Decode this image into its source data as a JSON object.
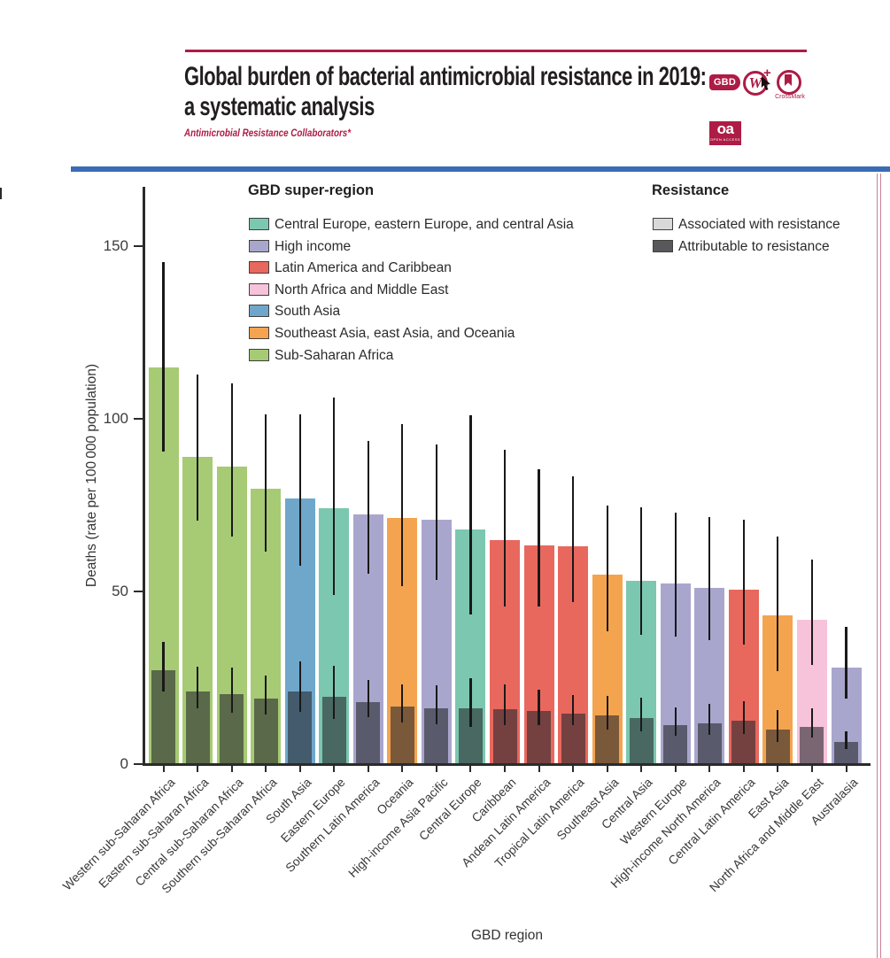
{
  "header": {
    "title_line1": "Global burden of bacterial antimicrobial resistance in 2019:",
    "title_line2": "a systematic analysis",
    "authors": "Antimicrobial Resistance Collaborators*",
    "accent_color": "#ad1c45",
    "band_color": "#3a6cb5",
    "badges": {
      "gbd_label": "GBD",
      "w_label": "W",
      "w_plus": "+",
      "crossmark_label": "CrossMark",
      "oa_label": "oa",
      "oa_sublabel": "OPEN ACCESS"
    }
  },
  "chart_data": {
    "type": "bar",
    "title": "",
    "xlabel": "GBD region",
    "ylabel": "Deaths (rate per 100 000 population)",
    "ylim": [
      0,
      166
    ],
    "yticks": [
      0,
      50,
      100,
      150
    ],
    "grid": false,
    "legend_position": "top-inside",
    "legend_super_region_title": "GBD super-region",
    "super_regions": [
      {
        "name": "Central Europe, eastern Europe, and central Asia",
        "color": "#7cc7b0"
      },
      {
        "name": "High income",
        "color": "#a9a6cd"
      },
      {
        "name": "Latin America and Caribbean",
        "color": "#e8685e"
      },
      {
        "name": "North Africa and Middle East",
        "color": "#f6c3da"
      },
      {
        "name": "South Asia",
        "color": "#6fa7cb"
      },
      {
        "name": "Southeast Asia, east Asia, and Oceania",
        "color": "#f4a44f"
      },
      {
        "name": "Sub-Saharan Africa",
        "color": "#a6cb74"
      }
    ],
    "legend_resistance_title": "Resistance",
    "resistance_legend": [
      {
        "label": "Associated with resistance",
        "color": "#d9d9d9"
      },
      {
        "label": "Attributable to resistance",
        "color": "#58585a"
      }
    ],
    "series_note": "Full colored bar = deaths associated with resistance; dark overlay bar = deaths attributable to resistance; vertical lines = 95% uncertainty intervals",
    "regions": [
      {
        "label": "Western sub-Saharan Africa",
        "super_region": "Sub-Saharan Africa",
        "associated": 114.8,
        "associated_ui": [
          90.4,
          145.3
        ],
        "attributable": 27.3,
        "attributable_ui": [
          20.9,
          35.3
        ]
      },
      {
        "label": "Eastern sub-Saharan Africa",
        "super_region": "Sub-Saharan Africa",
        "associated": 88.9,
        "associated_ui": [
          70.4,
          112.8
        ],
        "attributable": 21.1,
        "attributable_ui": [
          16.2,
          28.1
        ]
      },
      {
        "label": "Central sub-Saharan Africa",
        "super_region": "Sub-Saharan Africa",
        "associated": 86.2,
        "associated_ui": [
          66.0,
          110.2
        ],
        "attributable": 20.2,
        "attributable_ui": [
          14.9,
          27.9
        ]
      },
      {
        "label": "Southern sub-Saharan Africa",
        "super_region": "Sub-Saharan Africa",
        "associated": 79.7,
        "associated_ui": [
          61.6,
          101.3
        ],
        "attributable": 19.0,
        "attributable_ui": [
          14.3,
          25.6
        ]
      },
      {
        "label": "South Asia",
        "super_region": "South Asia",
        "associated": 76.8,
        "associated_ui": [
          57.4,
          101.2
        ],
        "attributable": 21.1,
        "attributable_ui": [
          15.1,
          29.7
        ]
      },
      {
        "label": "Eastern Europe",
        "super_region": "Central Europe, eastern Europe, and central Asia",
        "associated": 74.0,
        "associated_ui": [
          48.9,
          106.1
        ],
        "attributable": 19.4,
        "attributable_ui": [
          13.2,
          28.5
        ]
      },
      {
        "label": "Southern Latin America",
        "super_region": "High income",
        "associated": 72.2,
        "associated_ui": [
          55.2,
          93.5
        ],
        "attributable": 18.0,
        "attributable_ui": [
          13.6,
          24.3
        ]
      },
      {
        "label": "Oceania",
        "super_region": "Southeast Asia, east Asia, and Oceania",
        "associated": 71.4,
        "associated_ui": [
          51.5,
          98.5
        ],
        "attributable": 16.6,
        "attributable_ui": [
          12.1,
          23.0
        ]
      },
      {
        "label": "High-income Asia Pacific",
        "super_region": "High income",
        "associated": 70.7,
        "associated_ui": [
          53.3,
          92.6
        ],
        "attributable": 16.2,
        "attributable_ui": [
          11.5,
          22.8
        ]
      },
      {
        "label": "Central Europe",
        "super_region": "Central Europe, eastern Europe, and central Asia",
        "associated": 67.9,
        "associated_ui": [
          43.3,
          100.9
        ],
        "attributable": 16.2,
        "attributable_ui": [
          10.8,
          25.0
        ]
      },
      {
        "label": "Caribbean",
        "super_region": "Latin America and Caribbean",
        "associated": 65.0,
        "associated_ui": [
          45.6,
          91.1
        ],
        "attributable": 15.8,
        "attributable_ui": [
          11.2,
          23.2
        ]
      },
      {
        "label": "Andean Latin America",
        "super_region": "Latin America and Caribbean",
        "associated": 63.3,
        "associated_ui": [
          45.6,
          85.4
        ],
        "attributable": 15.5,
        "attributable_ui": [
          11.2,
          21.5
        ]
      },
      {
        "label": "Tropical Latin America",
        "super_region": "Latin America and Caribbean",
        "associated": 63.1,
        "associated_ui": [
          47.0,
          83.3
        ],
        "attributable": 14.6,
        "attributable_ui": [
          11.2,
          20.0
        ]
      },
      {
        "label": "Southeast Asia",
        "super_region": "Southeast Asia, east Asia, and Oceania",
        "associated": 54.9,
        "associated_ui": [
          38.5,
          74.9
        ],
        "attributable": 14.0,
        "attributable_ui": [
          10.0,
          19.7
        ]
      },
      {
        "label": "Central Asia",
        "super_region": "Central Europe, eastern Europe, and central Asia",
        "associated": 53.1,
        "associated_ui": [
          37.5,
          74.3
        ],
        "attributable": 13.4,
        "attributable_ui": [
          9.6,
          19.2
        ]
      },
      {
        "label": "Western Europe",
        "super_region": "High income",
        "associated": 52.3,
        "associated_ui": [
          36.9,
          72.9
        ],
        "attributable": 11.3,
        "attributable_ui": [
          8.2,
          16.3
        ]
      },
      {
        "label": "High-income North America",
        "super_region": "High income",
        "associated": 50.9,
        "associated_ui": [
          35.8,
          71.6
        ],
        "attributable": 11.9,
        "attributable_ui": [
          8.5,
          17.4
        ]
      },
      {
        "label": "Central Latin America",
        "super_region": "Latin America and Caribbean",
        "associated": 50.4,
        "associated_ui": [
          34.5,
          70.8
        ],
        "attributable": 12.6,
        "attributable_ui": [
          8.7,
          18.3
        ]
      },
      {
        "label": "East Asia",
        "super_region": "Southeast Asia, east Asia, and Oceania",
        "associated": 43.2,
        "associated_ui": [
          26.8,
          65.9
        ],
        "attributable": 9.9,
        "attributable_ui": [
          6.5,
          15.7
        ]
      },
      {
        "label": "North Africa and Middle East",
        "super_region": "North Africa and Middle East",
        "associated": 41.7,
        "associated_ui": [
          28.8,
          59.2
        ],
        "attributable": 10.8,
        "attributable_ui": [
          7.6,
          16.2
        ]
      },
      {
        "label": "Australasia",
        "super_region": "High income",
        "associated": 28.0,
        "associated_ui": [
          19.0,
          39.7
        ],
        "attributable": 6.5,
        "attributable_ui": [
          4.3,
          9.4
        ]
      }
    ]
  }
}
